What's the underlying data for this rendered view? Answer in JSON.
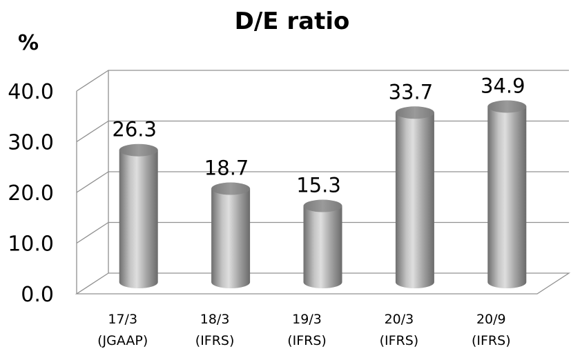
{
  "chart_data": {
    "type": "bar",
    "style": "3d-cylinder",
    "title": "D/E ratio",
    "unit_label": "%",
    "categories": [
      {
        "line1": "17/3",
        "line2": "(JGAAP)"
      },
      {
        "line1": "18/3",
        "line2": "(IFRS)"
      },
      {
        "line1": "19/3",
        "line2": "(IFRS)"
      },
      {
        "line1": "20/3",
        "line2": "(IFRS)"
      },
      {
        "line1": "20/9",
        "line2": "(IFRS)"
      }
    ],
    "values": [
      26.3,
      18.7,
      15.3,
      33.7,
      34.9
    ],
    "data_labels": [
      "26.3",
      "18.7",
      "15.3",
      "33.7",
      "34.9"
    ],
    "yticks": [
      "0.0",
      "10.0",
      "20.0",
      "30.0",
      "40.0"
    ],
    "ylim": [
      0,
      40
    ],
    "grid": true,
    "legend": "none",
    "colors": {
      "bar": "#a6a6a6",
      "grid": "#909090",
      "text": "#000000"
    }
  }
}
